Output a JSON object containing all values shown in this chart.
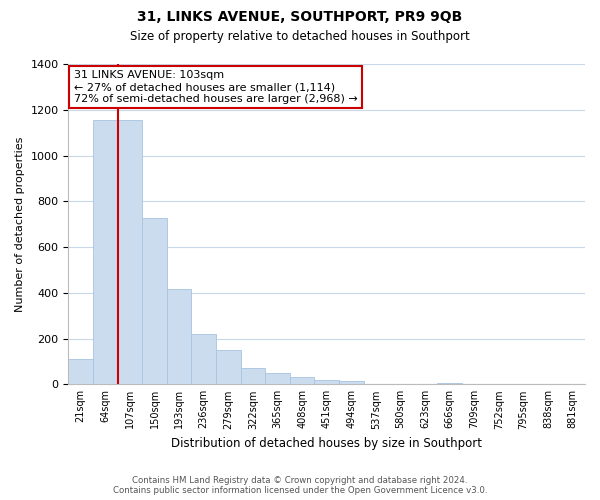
{
  "title": "31, LINKS AVENUE, SOUTHPORT, PR9 9QB",
  "subtitle": "Size of property relative to detached houses in Southport",
  "xlabel": "Distribution of detached houses by size in Southport",
  "ylabel": "Number of detached properties",
  "categories": [
    "21sqm",
    "64sqm",
    "107sqm",
    "150sqm",
    "193sqm",
    "236sqm",
    "279sqm",
    "322sqm",
    "365sqm",
    "408sqm",
    "451sqm",
    "494sqm",
    "537sqm",
    "580sqm",
    "623sqm",
    "666sqm",
    "709sqm",
    "752sqm",
    "795sqm",
    "838sqm",
    "881sqm"
  ],
  "values": [
    110,
    1155,
    1155,
    728,
    418,
    220,
    148,
    72,
    50,
    30,
    18,
    13,
    0,
    0,
    0,
    5,
    0,
    0,
    0,
    0,
    0
  ],
  "bar_color": "#ccdcef",
  "bar_edge_color": "#a8c4e0",
  "vline_color": "#cc0000",
  "vline_index": 2,
  "ylim": [
    0,
    1400
  ],
  "yticks": [
    0,
    200,
    400,
    600,
    800,
    1000,
    1200,
    1400
  ],
  "annotation_title": "31 LINKS AVENUE: 103sqm",
  "annotation_line1": "← 27% of detached houses are smaller (1,114)",
  "annotation_line2": "72% of semi-detached houses are larger (2,968) →",
  "annotation_box_color": "#ffffff",
  "annotation_box_edgecolor": "#cc0000",
  "footer_line1": "Contains HM Land Registry data © Crown copyright and database right 2024.",
  "footer_line2": "Contains public sector information licensed under the Open Government Licence v3.0.",
  "background_color": "#ffffff",
  "grid_color": "#c8d8e8"
}
